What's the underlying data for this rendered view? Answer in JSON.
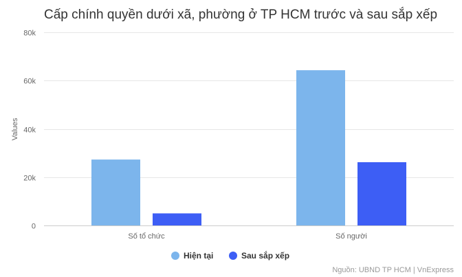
{
  "chart_data": {
    "type": "bar",
    "title": "Cấp chính quyền dưới xã, phường ở TP HCM trước và sau sắp xếp",
    "xlabel": "",
    "ylabel": "Values",
    "categories": [
      "Số tổ chức",
      "Số người"
    ],
    "series": [
      {
        "name": "Hiện tại",
        "values": [
          27300,
          64300
        ],
        "color": "#7cb5ec"
      },
      {
        "name": "Sau sắp xếp",
        "values": [
          5000,
          26200
        ],
        "color": "#3d5ef5"
      }
    ],
    "ylim": [
      0,
      80000
    ],
    "yticks": [
      0,
      20000,
      40000,
      60000,
      80000
    ],
    "ytick_labels": [
      "0",
      "20k",
      "40k",
      "60k",
      "80k"
    ],
    "grid": true,
    "legend_position": "bottom-center",
    "source": "Nguồn: UBND TP HCM | VnExpress"
  }
}
